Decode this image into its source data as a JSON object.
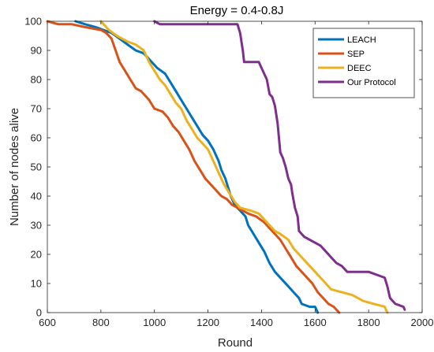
{
  "chart_data": {
    "type": "line",
    "title": "Energy = 0.4-0.8J",
    "xlabel": "Round",
    "ylabel": "Number of nodes alive",
    "xlim": [
      600,
      2000
    ],
    "ylim": [
      0,
      100
    ],
    "xticks": [
      600,
      800,
      1000,
      1200,
      1400,
      1600,
      1800,
      2000
    ],
    "yticks": [
      0,
      10,
      20,
      30,
      40,
      50,
      60,
      70,
      80,
      90,
      100
    ],
    "grid": false,
    "legend_position": "top-right",
    "series": [
      {
        "name": "LEACH",
        "color": "#0072BD",
        "points": [
          [
            705,
            100
          ],
          [
            740,
            99
          ],
          [
            780,
            98
          ],
          [
            810,
            97
          ],
          [
            840,
            96
          ],
          [
            870,
            94
          ],
          [
            900,
            92
          ],
          [
            930,
            90
          ],
          [
            960,
            89
          ],
          [
            990,
            86
          ],
          [
            1010,
            84
          ],
          [
            1040,
            82
          ],
          [
            1060,
            79
          ],
          [
            1080,
            76
          ],
          [
            1100,
            73
          ],
          [
            1120,
            70
          ],
          [
            1140,
            67
          ],
          [
            1160,
            64
          ],
          [
            1180,
            61
          ],
          [
            1200,
            59
          ],
          [
            1220,
            56
          ],
          [
            1240,
            52
          ],
          [
            1250,
            49
          ],
          [
            1265,
            46
          ],
          [
            1275,
            43
          ],
          [
            1285,
            40
          ],
          [
            1300,
            37
          ],
          [
            1320,
            35
          ],
          [
            1340,
            33
          ],
          [
            1350,
            30
          ],
          [
            1370,
            27
          ],
          [
            1390,
            24
          ],
          [
            1410,
            21
          ],
          [
            1430,
            17
          ],
          [
            1450,
            14
          ],
          [
            1480,
            11
          ],
          [
            1500,
            9
          ],
          [
            1520,
            7
          ],
          [
            1540,
            5
          ],
          [
            1550,
            3
          ],
          [
            1580,
            2
          ],
          [
            1600,
            2
          ],
          [
            1610,
            0
          ]
        ]
      },
      {
        "name": "SEP",
        "color": "#D95319",
        "points": [
          [
            600,
            100
          ],
          [
            640,
            99
          ],
          [
            690,
            99
          ],
          [
            740,
            98
          ],
          [
            800,
            97
          ],
          [
            820,
            96
          ],
          [
            840,
            94
          ],
          [
            855,
            90
          ],
          [
            870,
            86
          ],
          [
            890,
            83
          ],
          [
            910,
            80
          ],
          [
            930,
            77
          ],
          [
            950,
            76
          ],
          [
            980,
            73
          ],
          [
            1000,
            70
          ],
          [
            1030,
            69
          ],
          [
            1050,
            67
          ],
          [
            1070,
            64
          ],
          [
            1090,
            62
          ],
          [
            1110,
            59
          ],
          [
            1130,
            56
          ],
          [
            1150,
            52
          ],
          [
            1170,
            49
          ],
          [
            1190,
            46
          ],
          [
            1210,
            44
          ],
          [
            1230,
            42
          ],
          [
            1250,
            40
          ],
          [
            1270,
            39
          ],
          [
            1290,
            37
          ],
          [
            1310,
            36
          ],
          [
            1350,
            34
          ],
          [
            1380,
            33
          ],
          [
            1410,
            31
          ],
          [
            1430,
            29
          ],
          [
            1450,
            27
          ],
          [
            1470,
            25
          ],
          [
            1490,
            22
          ],
          [
            1510,
            19
          ],
          [
            1530,
            16
          ],
          [
            1550,
            14
          ],
          [
            1570,
            12
          ],
          [
            1590,
            10
          ],
          [
            1610,
            7
          ],
          [
            1630,
            5
          ],
          [
            1650,
            3
          ],
          [
            1670,
            2
          ],
          [
            1690,
            0
          ]
        ]
      },
      {
        "name": "DEEC",
        "color": "#EDB120",
        "points": [
          [
            800,
            100
          ],
          [
            830,
            97
          ],
          [
            860,
            95
          ],
          [
            900,
            93
          ],
          [
            930,
            92
          ],
          [
            960,
            90
          ],
          [
            980,
            86
          ],
          [
            1000,
            83
          ],
          [
            1020,
            80
          ],
          [
            1040,
            78
          ],
          [
            1060,
            75
          ],
          [
            1080,
            72
          ],
          [
            1100,
            70
          ],
          [
            1120,
            66
          ],
          [
            1140,
            63
          ],
          [
            1160,
            60
          ],
          [
            1180,
            58
          ],
          [
            1200,
            56
          ],
          [
            1220,
            52
          ],
          [
            1240,
            48
          ],
          [
            1260,
            44
          ],
          [
            1280,
            41
          ],
          [
            1300,
            38
          ],
          [
            1320,
            36
          ],
          [
            1360,
            35
          ],
          [
            1390,
            34
          ],
          [
            1410,
            32
          ],
          [
            1430,
            30
          ],
          [
            1450,
            28
          ],
          [
            1470,
            27
          ],
          [
            1500,
            25
          ],
          [
            1520,
            22
          ],
          [
            1540,
            20
          ],
          [
            1560,
            18
          ],
          [
            1580,
            16
          ],
          [
            1600,
            14
          ],
          [
            1620,
            12
          ],
          [
            1640,
            10
          ],
          [
            1660,
            8
          ],
          [
            1700,
            7
          ],
          [
            1740,
            6
          ],
          [
            1780,
            4
          ],
          [
            1820,
            3
          ],
          [
            1860,
            2
          ],
          [
            1870,
            0
          ]
        ]
      },
      {
        "name": "Our Protocol",
        "color": "#7E2F8E",
        "points": [
          [
            1000,
            100
          ],
          [
            1020,
            99
          ],
          [
            1100,
            99
          ],
          [
            1200,
            99
          ],
          [
            1270,
            99
          ],
          [
            1310,
            99
          ],
          [
            1320,
            96
          ],
          [
            1330,
            90
          ],
          [
            1335,
            86
          ],
          [
            1390,
            86
          ],
          [
            1400,
            84
          ],
          [
            1420,
            80
          ],
          [
            1430,
            75
          ],
          [
            1440,
            74
          ],
          [
            1450,
            71
          ],
          [
            1460,
            65
          ],
          [
            1465,
            60
          ],
          [
            1470,
            55
          ],
          [
            1480,
            53
          ],
          [
            1490,
            50
          ],
          [
            1500,
            46
          ],
          [
            1510,
            44
          ],
          [
            1515,
            41
          ],
          [
            1525,
            36
          ],
          [
            1535,
            33
          ],
          [
            1540,
            28
          ],
          [
            1550,
            27
          ],
          [
            1560,
            26
          ],
          [
            1580,
            25
          ],
          [
            1600,
            24
          ],
          [
            1620,
            23
          ],
          [
            1640,
            21
          ],
          [
            1660,
            19
          ],
          [
            1680,
            17
          ],
          [
            1700,
            16
          ],
          [
            1720,
            14
          ],
          [
            1740,
            14
          ],
          [
            1800,
            14
          ],
          [
            1860,
            12
          ],
          [
            1870,
            9
          ],
          [
            1880,
            5
          ],
          [
            1900,
            3
          ],
          [
            1930,
            2
          ],
          [
            1935,
            1
          ]
        ]
      }
    ]
  }
}
